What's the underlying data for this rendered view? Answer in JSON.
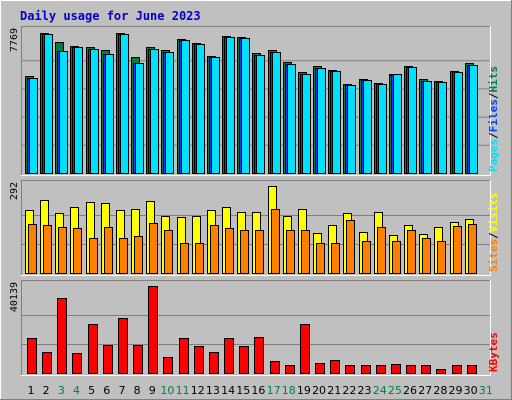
{
  "colors": {
    "background": "#c0c0c0",
    "panel": "#c0c0c0",
    "title": "#0000cc",
    "hits": "#008040",
    "files": "#0040ff",
    "pages": "#00e0ff",
    "visits": "#ffff00",
    "sites": "#ff8000",
    "kbytes": "#ff0000",
    "weekend": "#008040",
    "weekday": "#000000"
  },
  "chart_data": {
    "title": "Daily usage for June 2023",
    "type": "bar",
    "x": [
      "1",
      "2",
      "3",
      "4",
      "5",
      "6",
      "7",
      "8",
      "9",
      "10",
      "11",
      "12",
      "13",
      "14",
      "15",
      "16",
      "17",
      "18",
      "19",
      "20",
      "21",
      "22",
      "23",
      "24",
      "25",
      "26",
      "27",
      "28",
      "29",
      "30",
      "31"
    ],
    "weekend_days": [
      "3",
      "4",
      "10",
      "11",
      "17",
      "18",
      "24",
      "25",
      "31"
    ],
    "panels": [
      {
        "ymax_label": "7769",
        "ymax": 7769,
        "legend": [
          {
            "text": "Pages",
            "color": "#00e0ff"
          },
          {
            "text": "Files",
            "color": "#0040ff"
          },
          {
            "text": "Hits",
            "color": "#008040"
          }
        ],
        "series": [
          {
            "name": "Hits",
            "values": [
              5320,
              7720,
              7210,
              7020,
              6920,
              6790,
              7710,
              6410,
              6930,
              6800,
              7360,
              7160,
              6450,
              7540,
              7520,
              6590,
              6790,
              6110,
              5560,
              5870,
              5670,
              4910,
              5160,
              4960,
              5470,
              5900,
              5160,
              5070,
              5630,
              6050,
              null
            ]
          },
          {
            "name": "Files",
            "values": [
              5260,
              7670,
              6710,
              6920,
              6850,
              6530,
              7650,
              6070,
              6850,
              6660,
              7310,
              7110,
              6380,
              7480,
              7460,
              6490,
              6690,
              5980,
              5450,
              5780,
              5610,
              4860,
              5100,
              4890,
              5430,
              5840,
              5090,
              5020,
              5580,
              5960,
              null
            ]
          },
          {
            "name": "Pages",
            "values": [
              5260,
              7670,
              6710,
              6920,
              6850,
              6530,
              7650,
              6070,
              6850,
              6660,
              7310,
              7110,
              6380,
              7480,
              7460,
              6490,
              6690,
              5980,
              5450,
              5780,
              5610,
              4860,
              5100,
              4890,
              5430,
              5840,
              5090,
              5020,
              5580,
              5960,
              null
            ]
          }
        ]
      },
      {
        "ymax_label": "292",
        "ymax": 292,
        "legend": [
          {
            "text": "Sites",
            "color": "#ff8000"
          },
          {
            "text": "Visits",
            "color": "#ffff00"
          }
        ],
        "series": [
          {
            "name": "Visits",
            "values": [
              213,
              244,
              201,
              222,
              238,
              236,
              211,
              215,
              240,
              191,
              189,
              191,
              213,
              220,
              204,
              204,
              292,
              190,
              215,
              134,
              160,
              200,
              139,
              205,
              128,
              160,
              132,
              153,
              172,
              181,
              null
            ]
          },
          {
            "name": "Sites",
            "values": [
              163,
              162,
              156,
              150,
              119,
              155,
              119,
              124,
              168,
              145,
              101,
              101,
              160,
              150,
              145,
              145,
              214,
              145,
              145,
              101,
              101,
              179,
              106,
              156,
              106,
              145,
              116,
              106,
              158,
              166,
              null
            ]
          }
        ]
      },
      {
        "ymax_label": "40139",
        "ymax": 40139,
        "legend": [
          {
            "text": "KBytes",
            "color": "#ff0000"
          }
        ],
        "series": [
          {
            "name": "KBytes",
            "values": [
              16300,
              9500,
              34500,
              9200,
              22500,
              13000,
              25200,
              13000,
              40139,
              7300,
              16300,
              12500,
              9700,
              16300,
              12300,
              16800,
              5400,
              3600,
              22500,
              4600,
              5800,
              3600,
              3500,
              3800,
              4000,
              3500,
              3500,
              2000,
              3500,
              3600,
              null
            ]
          }
        ]
      }
    ]
  }
}
